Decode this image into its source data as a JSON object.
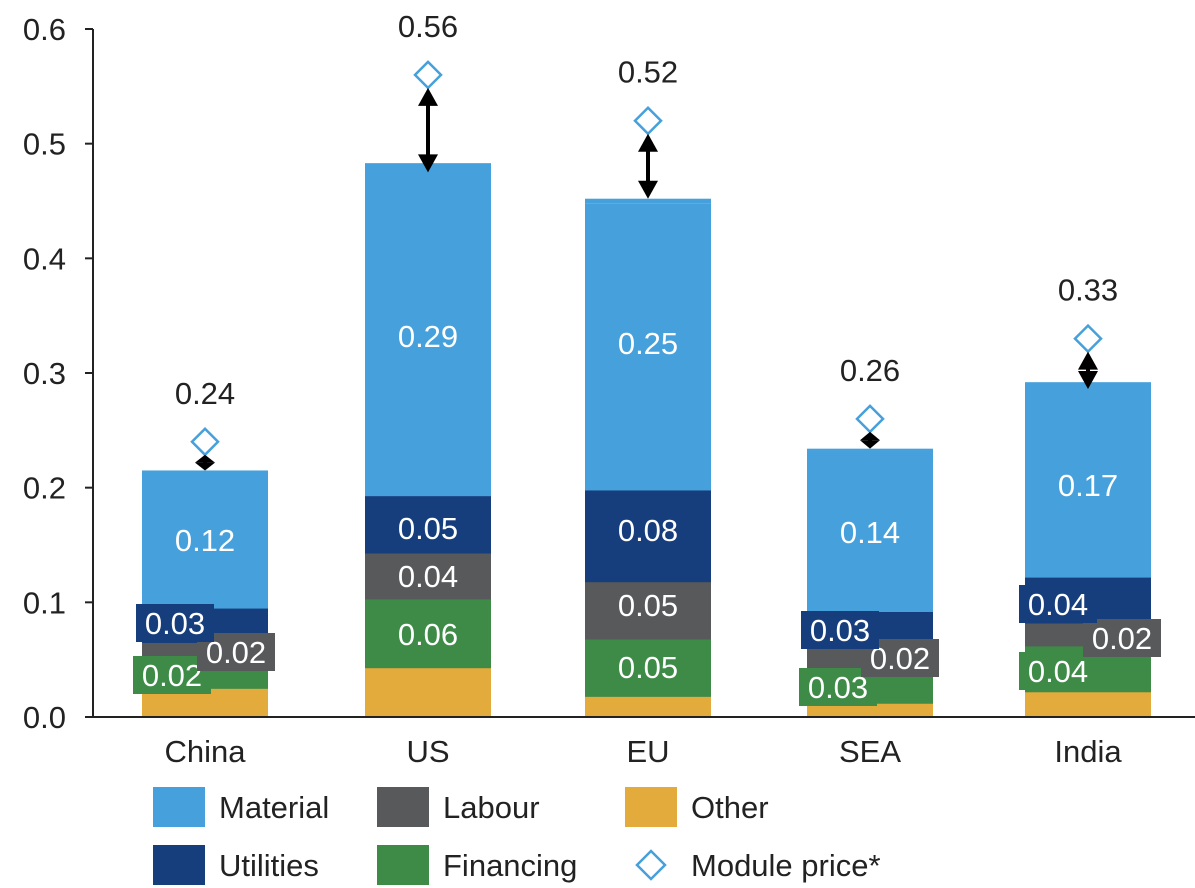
{
  "chart_data": {
    "type": "bar",
    "stacked": true,
    "categories": [
      "China",
      "US",
      "EU",
      "SEA",
      "India"
    ],
    "series": [
      {
        "name": "Other",
        "color": "#e3aa3c",
        "values": [
          0.025,
          0.043,
          0.018,
          0.012,
          0.022
        ]
      },
      {
        "name": "Financing",
        "color": "#3d8b47",
        "values": [
          0.02,
          0.06,
          0.05,
          0.03,
          0.04
        ]
      },
      {
        "name": "Labour",
        "color": "#58595b",
        "values": [
          0.02,
          0.04,
          0.05,
          0.02,
          0.02
        ]
      },
      {
        "name": "Utilities",
        "color": "#173e7c",
        "values": [
          0.03,
          0.05,
          0.08,
          0.03,
          0.04
        ]
      },
      {
        "name": "Material",
        "color": "#46a0dc",
        "values": [
          0.12,
          0.29,
          0.25,
          0.14,
          0.17
        ]
      }
    ],
    "labels": {
      "Financing": [
        "0.02",
        "0.06",
        "0.05",
        "0.03",
        "0.04"
      ],
      "Labour": [
        "0.02",
        "0.04",
        "0.05",
        "0.02",
        "0.02"
      ],
      "Utilities": [
        "0.03",
        "0.05",
        "0.08",
        "0.03",
        "0.04"
      ],
      "Material": [
        "0.12",
        "0.29",
        "0.25",
        "0.14",
        "0.17"
      ]
    },
    "module_price": {
      "name": "Module price*",
      "values": [
        0.24,
        0.56,
        0.52,
        0.26,
        0.33
      ],
      "labels": [
        "0.24",
        "0.56",
        "0.52",
        "0.26",
        "0.33"
      ],
      "color": "#46a0dc"
    },
    "totals": [
      0.215,
      0.475,
      0.452,
      0.234,
      0.286
    ],
    "ylim": [
      0,
      0.6
    ],
    "yticks": [
      "0.0",
      "0.1",
      "0.2",
      "0.3",
      "0.4",
      "0.5",
      "0.6"
    ],
    "xlabel": "",
    "ylabel": "",
    "grid": false,
    "legend_position": "bottom",
    "legend": [
      "Material",
      "Labour",
      "Other",
      "Utilities",
      "Financing",
      "Module price*"
    ]
  }
}
